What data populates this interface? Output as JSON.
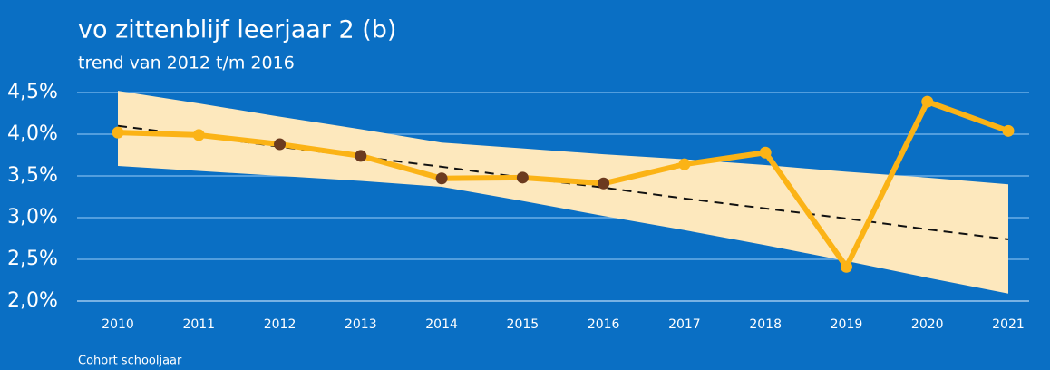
{
  "chart_data": {
    "type": "line",
    "title": "vo zittenblijf leerjaar 2 (b)",
    "subtitle": "trend van 2012 t/m 2016",
    "x_label": "Cohort schooljaar",
    "categories": [
      "2010",
      "2011",
      "2012",
      "2013",
      "2014",
      "2015",
      "2016",
      "2017",
      "2018",
      "2019",
      "2020",
      "2021"
    ],
    "series": [
      {
        "name": "zittenblijf",
        "color": "#fbb316",
        "marker_colors": [
          "#fbb316",
          "#fbb316",
          "#6b3a1f",
          "#6b3a1f",
          "#6b3a1f",
          "#6b3a1f",
          "#6b3a1f",
          "#fbb316",
          "#fbb316",
          "#fbb316",
          "#fbb316",
          "#fbb316"
        ],
        "values": [
          4.02,
          3.99,
          3.88,
          3.74,
          3.47,
          3.48,
          3.41,
          3.64,
          3.78,
          2.41,
          4.39,
          4.04
        ]
      },
      {
        "name": "trend",
        "color": "#111111",
        "dashed": true,
        "values": [
          4.1,
          3.98,
          3.85,
          3.73,
          3.61,
          3.48,
          3.36,
          3.23,
          3.11,
          2.99,
          2.86,
          2.74
        ]
      }
    ],
    "band": {
      "color": "#fde8bd",
      "upper": [
        4.52,
        4.37,
        4.21,
        4.06,
        3.9,
        3.83,
        3.76,
        3.7,
        3.63,
        3.55,
        3.48,
        3.4
      ],
      "lower": [
        3.62,
        3.56,
        3.5,
        3.44,
        3.37,
        3.2,
        3.02,
        2.85,
        2.67,
        2.48,
        2.28,
        2.09
      ]
    },
    "ylim": [
      2.0,
      4.5
    ],
    "yticks": [
      {
        "value": 2.0,
        "label": "2,0%"
      },
      {
        "value": 2.5,
        "label": "2,5%"
      },
      {
        "value": 3.0,
        "label": "3,0%"
      },
      {
        "value": 3.5,
        "label": "3,5%"
      },
      {
        "value": 4.0,
        "label": "4,0%"
      },
      {
        "value": 4.5,
        "label": "4,5%"
      }
    ],
    "grid": true
  }
}
